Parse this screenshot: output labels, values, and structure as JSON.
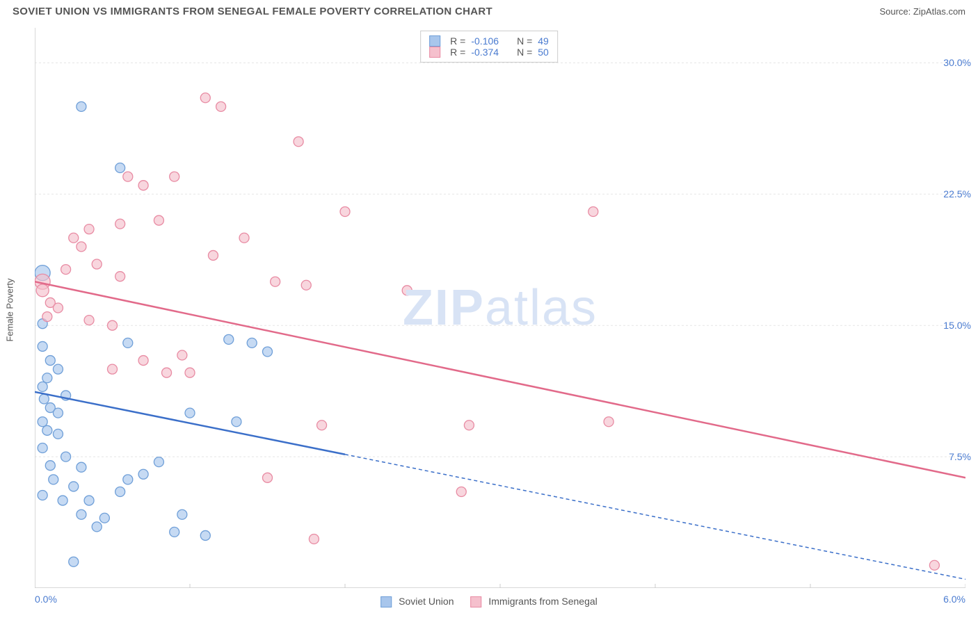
{
  "header": {
    "title": "SOVIET UNION VS IMMIGRANTS FROM SENEGAL FEMALE POVERTY CORRELATION CHART",
    "source": "Source: ZipAtlas.com"
  },
  "watermark": {
    "part1": "ZIP",
    "part2": "atlas"
  },
  "axes": {
    "y_label": "Female Poverty",
    "x_min": 0.0,
    "x_max": 6.0,
    "y_min": 0.0,
    "y_max": 32.0,
    "y_ticks": [
      7.5,
      15.0,
      22.5,
      30.0
    ],
    "y_tick_labels": [
      "7.5%",
      "15.0%",
      "22.5%",
      "30.0%"
    ],
    "x_tick_left": "0.0%",
    "x_tick_right": "6.0%",
    "x_minor_ticks": [
      0,
      1,
      2,
      3,
      4,
      5,
      6
    ],
    "grid_color": "#e5e5e5",
    "axis_color": "#cccccc"
  },
  "series": [
    {
      "name": "Soviet Union",
      "fill": "#a8c6ec",
      "stroke": "#6f9fd8",
      "line_color": "#3b6fc9",
      "r_label": "R =",
      "r_value": "-0.106",
      "n_label": "N =",
      "n_value": "49",
      "trend": {
        "x1": 0.0,
        "y1": 11.2,
        "x2": 6.0,
        "y2": 0.5,
        "solid_until_x": 2.0
      },
      "points": [
        {
          "x": 0.05,
          "y": 18.0,
          "r": 11
        },
        {
          "x": 0.3,
          "y": 27.5,
          "r": 7
        },
        {
          "x": 0.05,
          "y": 15.1,
          "r": 7
        },
        {
          "x": 0.05,
          "y": 13.8,
          "r": 7
        },
        {
          "x": 0.1,
          "y": 13.0,
          "r": 7
        },
        {
          "x": 0.08,
          "y": 12.0,
          "r": 7
        },
        {
          "x": 0.15,
          "y": 12.5,
          "r": 7
        },
        {
          "x": 0.05,
          "y": 11.5,
          "r": 7
        },
        {
          "x": 0.06,
          "y": 10.8,
          "r": 7
        },
        {
          "x": 0.1,
          "y": 10.3,
          "r": 7
        },
        {
          "x": 0.15,
          "y": 10.0,
          "r": 7
        },
        {
          "x": 0.2,
          "y": 11.0,
          "r": 7
        },
        {
          "x": 0.05,
          "y": 9.5,
          "r": 7
        },
        {
          "x": 0.08,
          "y": 9.0,
          "r": 7
        },
        {
          "x": 0.15,
          "y": 8.8,
          "r": 7
        },
        {
          "x": 0.05,
          "y": 8.0,
          "r": 7
        },
        {
          "x": 0.2,
          "y": 7.5,
          "r": 7
        },
        {
          "x": 0.1,
          "y": 7.0,
          "r": 7
        },
        {
          "x": 0.3,
          "y": 6.9,
          "r": 7
        },
        {
          "x": 0.12,
          "y": 6.2,
          "r": 7
        },
        {
          "x": 0.25,
          "y": 5.8,
          "r": 7
        },
        {
          "x": 0.05,
          "y": 5.3,
          "r": 7
        },
        {
          "x": 0.18,
          "y": 5.0,
          "r": 7
        },
        {
          "x": 0.35,
          "y": 5.0,
          "r": 7
        },
        {
          "x": 0.3,
          "y": 4.2,
          "r": 7
        },
        {
          "x": 0.45,
          "y": 4.0,
          "r": 7
        },
        {
          "x": 0.55,
          "y": 5.5,
          "r": 7
        },
        {
          "x": 0.6,
          "y": 6.2,
          "r": 7
        },
        {
          "x": 0.25,
          "y": 1.5,
          "r": 7
        },
        {
          "x": 0.6,
          "y": 14.0,
          "r": 7
        },
        {
          "x": 0.55,
          "y": 24.0,
          "r": 7
        },
        {
          "x": 0.7,
          "y": 6.5,
          "r": 7
        },
        {
          "x": 0.8,
          "y": 7.2,
          "r": 7
        },
        {
          "x": 0.9,
          "y": 3.2,
          "r": 7
        },
        {
          "x": 0.95,
          "y": 4.2,
          "r": 7
        },
        {
          "x": 1.0,
          "y": 10.0,
          "r": 7
        },
        {
          "x": 1.1,
          "y": 3.0,
          "r": 7
        },
        {
          "x": 1.25,
          "y": 14.2,
          "r": 7
        },
        {
          "x": 1.3,
          "y": 9.5,
          "r": 7
        },
        {
          "x": 1.4,
          "y": 14.0,
          "r": 7
        },
        {
          "x": 1.5,
          "y": 13.5,
          "r": 7
        },
        {
          "x": 0.4,
          "y": 3.5,
          "r": 7
        }
      ]
    },
    {
      "name": "Immigrants from Senegal",
      "fill": "#f5c0cd",
      "stroke": "#e88ba3",
      "line_color": "#e26a8a",
      "r_label": "R =",
      "r_value": "-0.374",
      "n_label": "N =",
      "n_value": "50",
      "trend": {
        "x1": 0.0,
        "y1": 17.5,
        "x2": 6.0,
        "y2": 6.3,
        "solid_until_x": 6.0
      },
      "points": [
        {
          "x": 0.05,
          "y": 17.5,
          "r": 11
        },
        {
          "x": 0.05,
          "y": 17.0,
          "r": 9
        },
        {
          "x": 0.1,
          "y": 16.3,
          "r": 7
        },
        {
          "x": 0.15,
          "y": 16.0,
          "r": 7
        },
        {
          "x": 0.08,
          "y": 15.5,
          "r": 7
        },
        {
          "x": 0.2,
          "y": 18.2,
          "r": 7
        },
        {
          "x": 0.25,
          "y": 20.0,
          "r": 7
        },
        {
          "x": 0.3,
          "y": 19.5,
          "r": 7
        },
        {
          "x": 0.35,
          "y": 20.5,
          "r": 7
        },
        {
          "x": 0.4,
          "y": 18.5,
          "r": 7
        },
        {
          "x": 0.35,
          "y": 15.3,
          "r": 7
        },
        {
          "x": 0.5,
          "y": 15.0,
          "r": 7
        },
        {
          "x": 0.55,
          "y": 17.8,
          "r": 7
        },
        {
          "x": 0.5,
          "y": 12.5,
          "r": 7
        },
        {
          "x": 0.55,
          "y": 20.8,
          "r": 7
        },
        {
          "x": 0.6,
          "y": 23.5,
          "r": 7
        },
        {
          "x": 0.7,
          "y": 23.0,
          "r": 7
        },
        {
          "x": 0.7,
          "y": 13.0,
          "r": 7
        },
        {
          "x": 0.8,
          "y": 21.0,
          "r": 7
        },
        {
          "x": 0.85,
          "y": 12.3,
          "r": 7
        },
        {
          "x": 0.9,
          "y": 23.5,
          "r": 7
        },
        {
          "x": 0.95,
          "y": 13.3,
          "r": 7
        },
        {
          "x": 1.0,
          "y": 12.3,
          "r": 7
        },
        {
          "x": 1.1,
          "y": 28.0,
          "r": 7
        },
        {
          "x": 1.15,
          "y": 19.0,
          "r": 7
        },
        {
          "x": 1.2,
          "y": 27.5,
          "r": 7
        },
        {
          "x": 1.35,
          "y": 20.0,
          "r": 7
        },
        {
          "x": 1.5,
          "y": 6.3,
          "r": 7
        },
        {
          "x": 1.55,
          "y": 17.5,
          "r": 7
        },
        {
          "x": 1.7,
          "y": 25.5,
          "r": 7
        },
        {
          "x": 1.75,
          "y": 17.3,
          "r": 7
        },
        {
          "x": 1.8,
          "y": 2.8,
          "r": 7
        },
        {
          "x": 1.85,
          "y": 9.3,
          "r": 7
        },
        {
          "x": 2.0,
          "y": 21.5,
          "r": 7
        },
        {
          "x": 2.4,
          "y": 17.0,
          "r": 7
        },
        {
          "x": 2.75,
          "y": 5.5,
          "r": 7
        },
        {
          "x": 2.8,
          "y": 9.3,
          "r": 7
        },
        {
          "x": 3.6,
          "y": 21.5,
          "r": 7
        },
        {
          "x": 3.7,
          "y": 9.5,
          "r": 7
        },
        {
          "x": 5.8,
          "y": 1.3,
          "r": 7
        }
      ]
    }
  ],
  "legend_labels": {
    "series1": "Soviet Union",
    "series2": "Immigrants from Senegal"
  }
}
